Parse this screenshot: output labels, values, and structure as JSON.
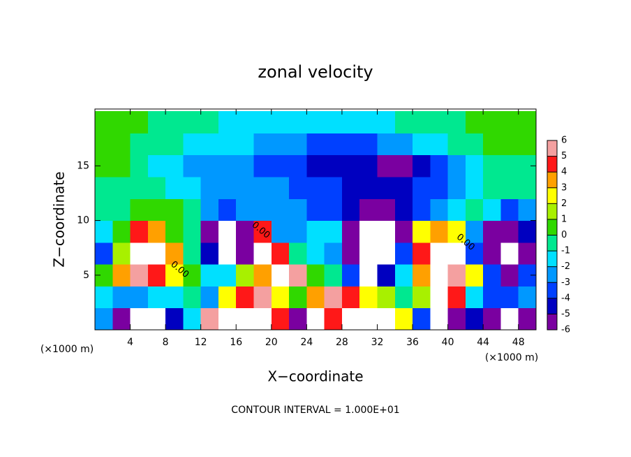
{
  "chart_data": {
    "type": "heatmap",
    "title": "zonal velocity",
    "x_label": "X−coordinate",
    "y_label": "Z−coordinate",
    "x_unit_label": "(×1000 m)",
    "y_unit_label": "(×1000 m)",
    "footer": "CONTOUR INTERVAL = 1.000E+01",
    "xlim": [
      0,
      50
    ],
    "ylim": [
      0,
      20.2
    ],
    "xticks": [
      4,
      8,
      12,
      16,
      20,
      24,
      28,
      32,
      36,
      40,
      44,
      48
    ],
    "yticks": [
      5,
      10,
      15
    ],
    "x": [
      1,
      3,
      5,
      7,
      9,
      11,
      13,
      15,
      17,
      19,
      21,
      23,
      25,
      27,
      29,
      31,
      33,
      35,
      37,
      39,
      41,
      43,
      45,
      47,
      49
    ],
    "z": [
      1,
      3,
      5,
      7,
      9,
      11,
      13,
      15,
      17,
      19
    ],
    "values": [
      [
        -2,
        -5,
        -8,
        -7,
        -4,
        -1,
        6,
        7,
        7,
        8,
        5,
        -5,
        -8,
        5,
        7,
        8,
        7,
        3,
        -3,
        -7,
        -6,
        -4,
        -6,
        -7,
        -5
      ],
      [
        -1,
        -2,
        -2.5,
        -1,
        -1,
        0,
        -2,
        3,
        5,
        6,
        3,
        1,
        4,
        6,
        5,
        3,
        2,
        0,
        2,
        7,
        5,
        -1,
        -3,
        -3,
        -2
      ],
      [
        1,
        4,
        6,
        5,
        3,
        0.5,
        -1,
        -1,
        2,
        4,
        7,
        6,
        0.5,
        -0.5,
        -3,
        -7,
        -4,
        -1,
        4,
        7,
        6,
        3,
        -3,
        -5,
        -3
      ],
      [
        -3,
        2,
        7,
        7,
        4,
        0,
        -4,
        -7,
        -5,
        7,
        5,
        0,
        -1,
        -2,
        -6,
        -8,
        -7,
        -3,
        5,
        7,
        8,
        -3,
        -6,
        -7,
        -6
      ],
      [
        -1,
        1,
        5,
        4,
        1,
        -0.5,
        -5,
        -7,
        -5,
        5,
        -2,
        -2,
        -1,
        -1,
        -5,
        -7,
        -7,
        -5,
        3,
        4,
        3,
        -2,
        -5,
        -6,
        -4
      ],
      [
        -0.5,
        -0.5,
        0.2,
        0.5,
        0.2,
        -0.5,
        -2,
        -3.5,
        -2.5,
        -2,
        -2.5,
        -2.5,
        -3,
        -3,
        -4,
        -5,
        -5,
        -4.5,
        -3.5,
        -2.5,
        -1.5,
        -0.5,
        -1.5,
        -3,
        -2
      ],
      [
        0,
        -0.3,
        -0.5,
        -0.8,
        -1,
        -1.5,
        -2.2,
        -2.5,
        -2.5,
        -2.5,
        -2.5,
        -3,
        -3,
        -3.5,
        -4,
        -4,
        -4,
        -4,
        -3.5,
        -3,
        -2,
        -1,
        -0.5,
        -0.3,
        0
      ],
      [
        0.5,
        0.2,
        -0.5,
        -1,
        -1.5,
        -2,
        -2,
        -2.5,
        -2.5,
        -3,
        -3,
        -3.5,
        -4,
        -4,
        -4.5,
        -4.5,
        -5,
        -5,
        -4.5,
        -3.5,
        -2.5,
        -1.5,
        -0.8,
        -0.3,
        0
      ],
      [
        0.5,
        0.3,
        0,
        -0.5,
        -0.8,
        -1,
        -1.3,
        -1.5,
        -1.8,
        -2,
        -2.5,
        -2.8,
        -3,
        -3,
        -3,
        -3,
        -2.5,
        -2,
        -1.5,
        -1,
        -0.5,
        0,
        0.3,
        0.5,
        0.5
      ],
      [
        0.5,
        0.5,
        0.3,
        -0.2,
        -0.5,
        -0.5,
        -0.8,
        -1,
        -1,
        -1,
        -1,
        -1,
        -1,
        -1.2,
        -1.2,
        -1,
        -1,
        -0.8,
        -0.5,
        -0.3,
        0,
        0.3,
        0.5,
        0.5,
        0.5
      ]
    ],
    "colorbar": {
      "levels": [
        -6,
        -5,
        -4,
        -3,
        -2,
        -1,
        0,
        1,
        2,
        3,
        4,
        5,
        6
      ],
      "colors": [
        "#7a00a0",
        "#0000c0",
        "#0040ff",
        "#0098ff",
        "#00e0ff",
        "#00e890",
        "#30d800",
        "#a8f000",
        "#ffff00",
        "#ffa000",
        "#ff1818",
        "#f4a0a0"
      ]
    },
    "annotations": [
      {
        "text": "0.00",
        "x": 18.8,
        "z": 9.1
      },
      {
        "text": "0.00",
        "x": 9.6,
        "z": 5.5
      },
      {
        "text": "0.00",
        "x": 42,
        "z": 8
      }
    ]
  }
}
